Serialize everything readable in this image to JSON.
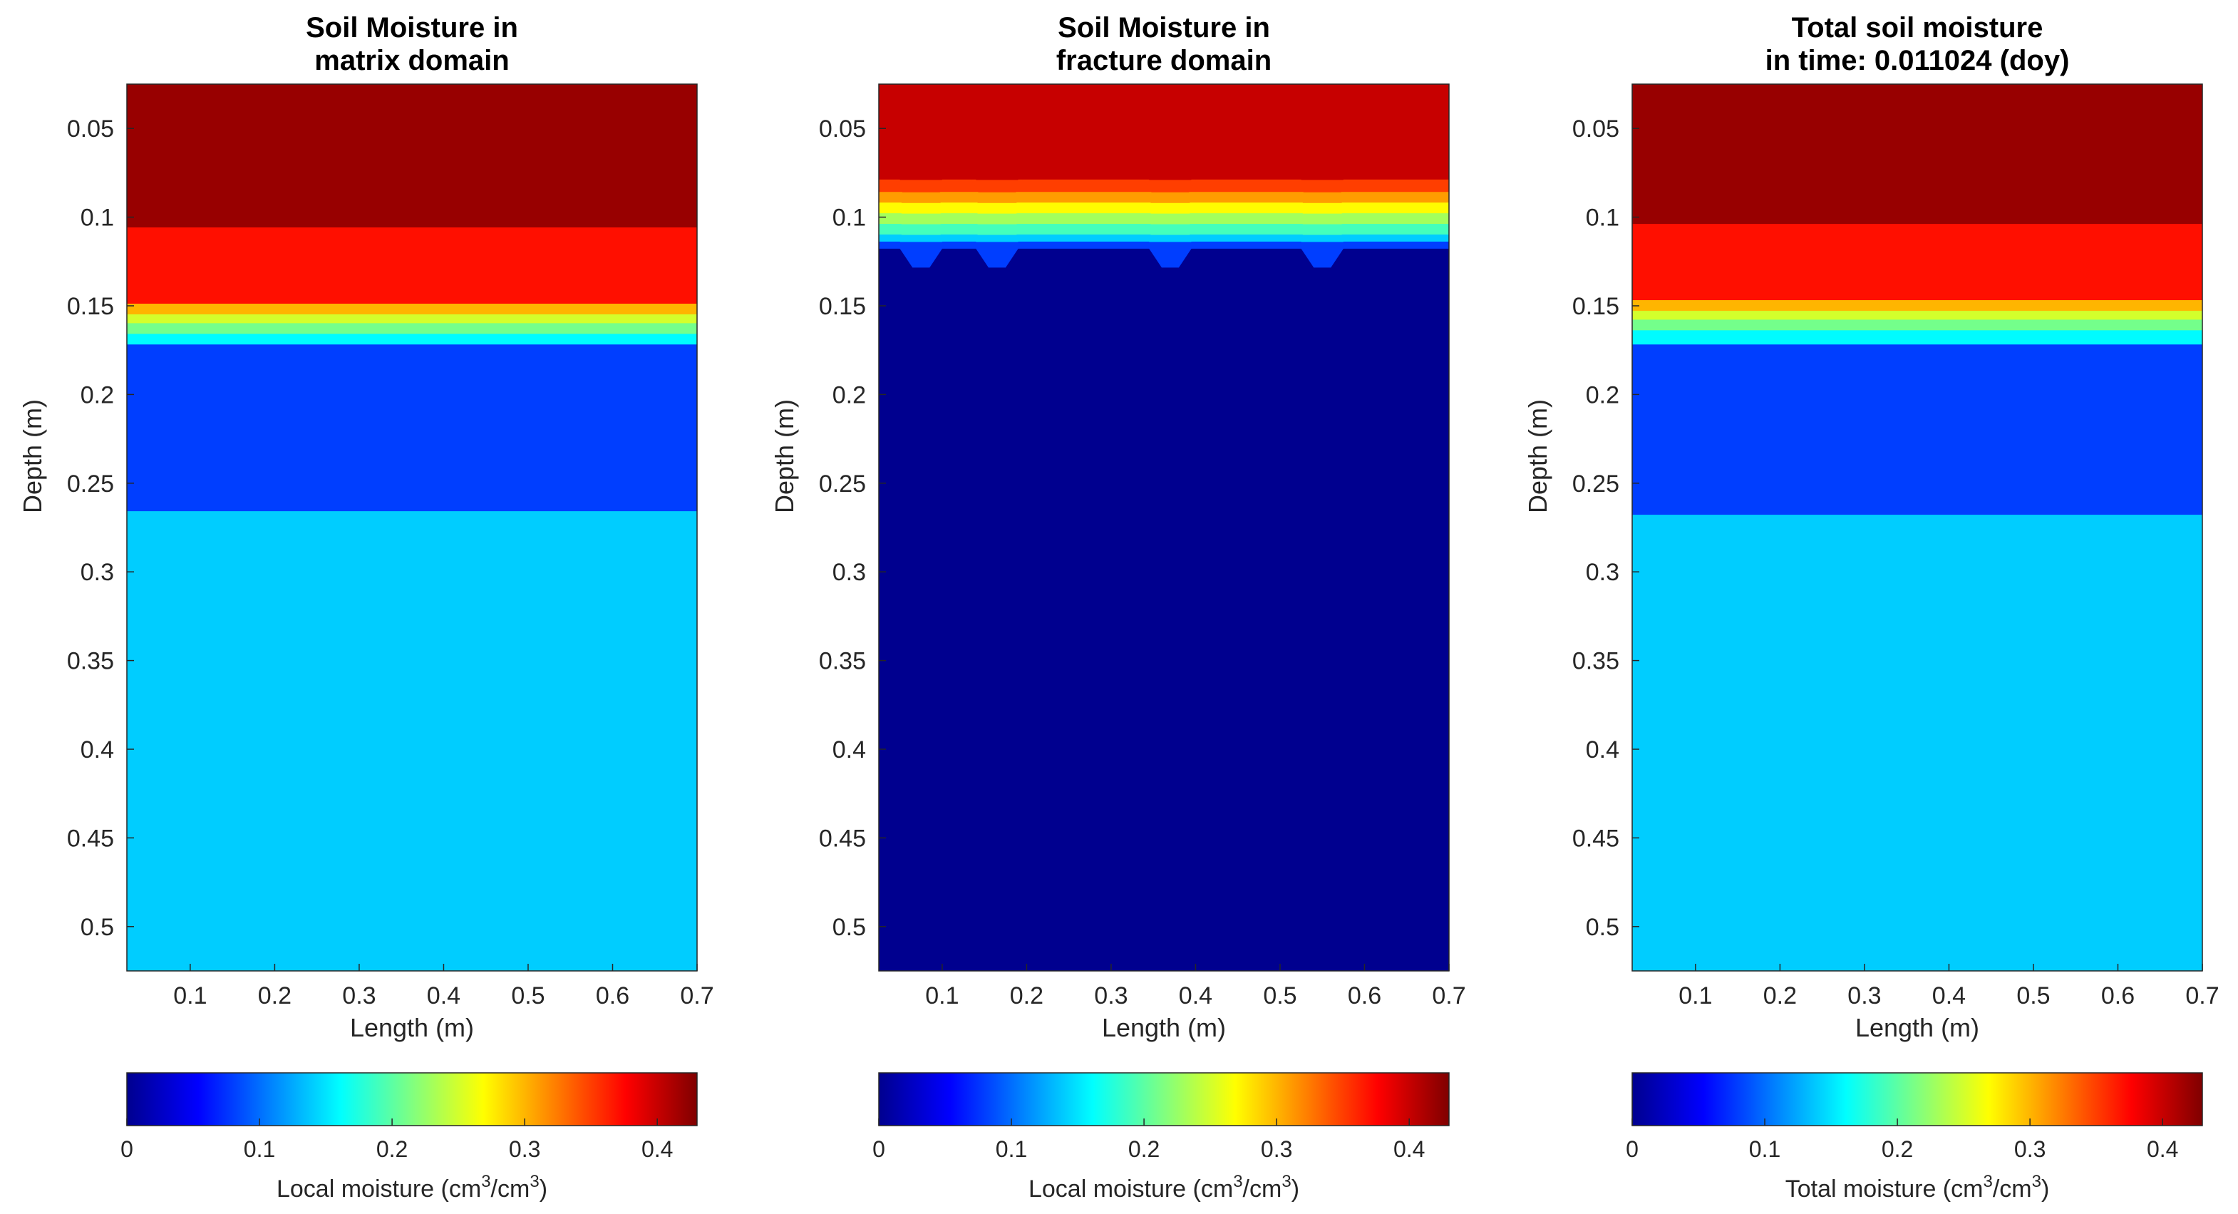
{
  "chart_data": [
    {
      "type": "heatmap",
      "title": "Soil Moisture in\nmatrix domain",
      "xlabel": "Length (m)",
      "ylabel": "Depth (m)",
      "xlim": [
        0.025,
        0.7
      ],
      "ylim": [
        0.025,
        0.525
      ],
      "y_reversed": true,
      "x_ticks": [
        "0.1",
        "0.2",
        "0.3",
        "0.4",
        "0.5",
        "0.6",
        "0.7"
      ],
      "y_ticks": [
        "0.05",
        "0.1",
        "0.15",
        "0.2",
        "0.25",
        "0.3",
        "0.35",
        "0.4",
        "0.45",
        "0.5"
      ],
      "layers": [
        {
          "depth_from": 0.025,
          "depth_to": 0.106,
          "value": 0.42
        },
        {
          "depth_from": 0.106,
          "depth_to": 0.149,
          "value": 0.37
        },
        {
          "depth_from": 0.149,
          "depth_to": 0.155,
          "value": 0.3
        },
        {
          "depth_from": 0.155,
          "depth_to": 0.16,
          "value": 0.25
        },
        {
          "depth_from": 0.16,
          "depth_to": 0.166,
          "value": 0.21
        },
        {
          "depth_from": 0.166,
          "depth_to": 0.172,
          "value": 0.16
        },
        {
          "depth_from": 0.172,
          "depth_to": 0.266,
          "value": 0.08
        },
        {
          "depth_from": 0.266,
          "depth_to": 0.525,
          "value": 0.14
        }
      ],
      "colorbar": {
        "label_prefix": "Local moisture (cm",
        "label_mid": "/cm",
        "label_suffix": ")",
        "superscript": "3",
        "ticks": [
          "0",
          "0.1",
          "0.2",
          "0.3",
          "0.4"
        ],
        "range": [
          0,
          0.43
        ],
        "colormap": "jet-reversed"
      }
    },
    {
      "type": "heatmap",
      "title": "Soil Moisture in\nfracture domain",
      "xlabel": "Length (m)",
      "ylabel": "Depth (m)",
      "xlim": [
        0.025,
        0.7
      ],
      "ylim": [
        0.025,
        0.525
      ],
      "y_reversed": true,
      "x_ticks": [
        "0.1",
        "0.2",
        "0.3",
        "0.4",
        "0.5",
        "0.6",
        "0.7"
      ],
      "y_ticks": [
        "0.05",
        "0.1",
        "0.15",
        "0.2",
        "0.25",
        "0.3",
        "0.35",
        "0.4",
        "0.45",
        "0.5"
      ],
      "layers": [
        {
          "depth_from": 0.025,
          "depth_to": 0.079,
          "value": 0.4
        },
        {
          "depth_from": 0.079,
          "depth_to": 0.086,
          "value": 0.35
        },
        {
          "depth_from": 0.086,
          "depth_to": 0.092,
          "value": 0.31
        },
        {
          "depth_from": 0.092,
          "depth_to": 0.098,
          "value": 0.27
        },
        {
          "depth_from": 0.098,
          "depth_to": 0.104,
          "value": 0.23
        },
        {
          "depth_from": 0.104,
          "depth_to": 0.11,
          "value": 0.19
        },
        {
          "depth_from": 0.11,
          "depth_to": 0.114,
          "value": 0.14
        },
        {
          "depth_from": 0.114,
          "depth_to": 0.118,
          "value": 0.08
        },
        {
          "depth_from": 0.118,
          "depth_to": 0.525,
          "value": 0.0
        }
      ],
      "notch_centers_x": [
        0.075,
        0.165,
        0.37,
        0.55
      ],
      "colorbar": {
        "label_prefix": "Local moisture (cm",
        "label_mid": "/cm",
        "label_suffix": ")",
        "superscript": "3",
        "ticks": [
          "0",
          "0.1",
          "0.2",
          "0.3",
          "0.4"
        ],
        "range": [
          0,
          0.43
        ],
        "colormap": "jet-reversed"
      }
    },
    {
      "type": "heatmap",
      "title": "Total soil moisture\nin time: 0.011024 (doy)",
      "xlabel": "Length (m)",
      "ylabel": "Depth (m)",
      "xlim": [
        0.025,
        0.7
      ],
      "ylim": [
        0.025,
        0.525
      ],
      "y_reversed": true,
      "x_ticks": [
        "0.1",
        "0.2",
        "0.3",
        "0.4",
        "0.5",
        "0.6",
        "0.7"
      ],
      "y_ticks": [
        "0.05",
        "0.1",
        "0.15",
        "0.2",
        "0.25",
        "0.3",
        "0.35",
        "0.4",
        "0.45",
        "0.5"
      ],
      "layers": [
        {
          "depth_from": 0.025,
          "depth_to": 0.104,
          "value": 0.42
        },
        {
          "depth_from": 0.104,
          "depth_to": 0.147,
          "value": 0.37
        },
        {
          "depth_from": 0.147,
          "depth_to": 0.153,
          "value": 0.3
        },
        {
          "depth_from": 0.153,
          "depth_to": 0.158,
          "value": 0.25
        },
        {
          "depth_from": 0.158,
          "depth_to": 0.164,
          "value": 0.21
        },
        {
          "depth_from": 0.164,
          "depth_to": 0.172,
          "value": 0.16
        },
        {
          "depth_from": 0.172,
          "depth_to": 0.268,
          "value": 0.08
        },
        {
          "depth_from": 0.268,
          "depth_to": 0.525,
          "value": 0.14
        }
      ],
      "colorbar": {
        "label_prefix": "Total moisture (cm",
        "label_mid": "/cm",
        "label_suffix": ")",
        "superscript": "3",
        "ticks": [
          "0",
          "0.1",
          "0.2",
          "0.3",
          "0.4"
        ],
        "range": [
          0,
          0.43
        ],
        "colormap": "jet-reversed"
      }
    }
  ]
}
